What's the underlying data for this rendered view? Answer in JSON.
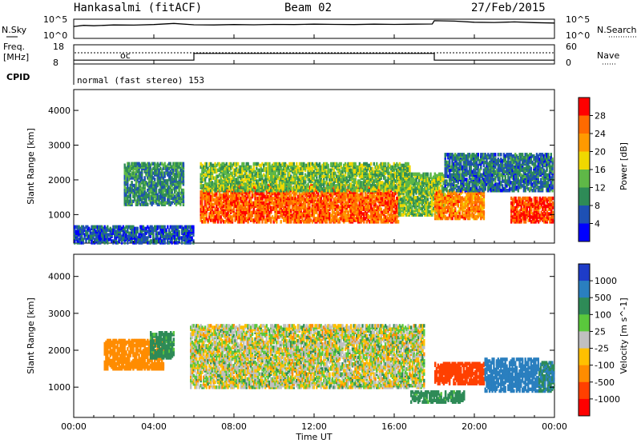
{
  "header": {
    "station": "Hankasalmi (fitACF)",
    "beam": "Beam 02",
    "date": "27/Feb/2015"
  },
  "noise_panel": {
    "left_label": "N.Sky",
    "right_label": "N.Search",
    "left_ticks": [
      "10^5",
      "10^0"
    ],
    "right_ticks": [
      "10^5",
      "10^0"
    ],
    "trace": [
      [
        0,
        0.62
      ],
      [
        0.5,
        0.68
      ],
      [
        1,
        0.66
      ],
      [
        2,
        0.7
      ],
      [
        3,
        0.69
      ],
      [
        4,
        0.72
      ],
      [
        5,
        0.78
      ],
      [
        6,
        0.71
      ],
      [
        7,
        0.7
      ],
      [
        8,
        0.72
      ],
      [
        9,
        0.71
      ],
      [
        10,
        0.73
      ],
      [
        11,
        0.72
      ],
      [
        12,
        0.74
      ],
      [
        13,
        0.73
      ],
      [
        14,
        0.72
      ],
      [
        15,
        0.74
      ],
      [
        16,
        0.73
      ],
      [
        17,
        0.74
      ],
      [
        17.9,
        0.75
      ],
      [
        18,
        0.92
      ],
      [
        19,
        0.9
      ],
      [
        20,
        0.84
      ],
      [
        21,
        0.83
      ],
      [
        22,
        0.86
      ],
      [
        23,
        0.82
      ],
      [
        24,
        0.8
      ]
    ]
  },
  "freq_panel": {
    "left_label_top": "Freq.",
    "left_label_bottom": "[MHz]",
    "left_ticks": [
      "18",
      "8"
    ],
    "right_ticks": [
      "60",
      "0"
    ],
    "right_label": "Nave",
    "cpid_label": "CPID",
    "cpid_text": "normal (fast stereo) 153",
    "freq_low": 8,
    "freq_high": 18,
    "freq_step": [
      [
        0,
        0.2
      ],
      [
        6,
        0.2
      ],
      [
        6,
        0.55
      ],
      [
        18,
        0.55
      ],
      [
        18,
        0.2
      ],
      [
        24,
        0.2
      ]
    ]
  },
  "x_axis": {
    "title": "Time UT",
    "ticks": [
      "00:00",
      "04:00",
      "08:00",
      "12:00",
      "16:00",
      "20:00",
      "00:00"
    ],
    "tick_hours": [
      0,
      4,
      8,
      12,
      16,
      20,
      24
    ],
    "range": [
      0,
      24
    ]
  },
  "power_panel": {
    "ylabel": "Slant Range [km]",
    "yticks": [
      "4000",
      "3000",
      "2000",
      "1000"
    ],
    "ytick_values": [
      4000,
      3000,
      2000,
      1000
    ],
    "yrange": [
      180,
      4600
    ],
    "colorbar_label": "Power [dB]",
    "colorbar_ticks": [
      "28",
      "24",
      "20",
      "16",
      "12",
      "8",
      "4"
    ],
    "colors": [
      "#0000ff",
      "#1e50b4",
      "#2e8b57",
      "#5fb847",
      "#f0d800",
      "#ff9a00",
      "#ff6a00",
      "#ff0000"
    ]
  },
  "velocity_panel": {
    "ylabel": "Slant Range [km]",
    "yticks": [
      "4000",
      "3000",
      "2000",
      "1000"
    ],
    "ytick_values": [
      4000,
      3000,
      2000,
      1000
    ],
    "yrange": [
      180,
      4600
    ],
    "colorbar_label": "Velocity [m s^-1]",
    "colorbar_ticks": [
      "1000",
      "500",
      "100",
      "25",
      "-25",
      "-100",
      "-500",
      "-1000"
    ],
    "colors": [
      "#1e3cc8",
      "#2a7fbf",
      "#2e8b57",
      "#5ac83c",
      "#c0c0c0",
      "#ffc000",
      "#ff8c00",
      "#ff4000",
      "#ff0000"
    ]
  },
  "chart_data": {
    "type": "heatmap",
    "title": "Hankasalmi (fitACF)",
    "xlabel": "Time UT",
    "ylabel": "Slant Range [km]",
    "x_range": [
      0,
      24
    ],
    "y_range": [
      180,
      4600
    ],
    "power_regions": [
      {
        "t0": 6.3,
        "t1": 16.2,
        "r0": 800,
        "r1": 1900,
        "dB": 26
      },
      {
        "t0": 6.3,
        "t1": 16.8,
        "r0": 1700,
        "r1": 2500,
        "dB": 14
      },
      {
        "t0": 2.5,
        "t1": 5.5,
        "r0": 1300,
        "r1": 2500,
        "dB": 10
      },
      {
        "t0": 16.2,
        "t1": 18.5,
        "r0": 1000,
        "r1": 2200,
        "dB": 14
      },
      {
        "t0": 18.0,
        "t1": 20.5,
        "r0": 900,
        "r1": 1700,
        "dB": 24
      },
      {
        "t0": 21.8,
        "t1": 24.0,
        "r0": 800,
        "r1": 1500,
        "dB": 28
      },
      {
        "t0": 18.5,
        "t1": 24.0,
        "r0": 1700,
        "r1": 2800,
        "dB": 8
      },
      {
        "t0": 0.0,
        "t1": 6.0,
        "r0": 200,
        "r1": 700,
        "dB": 6
      }
    ],
    "velocity_regions": [
      {
        "t0": 5.8,
        "t1": 17.5,
        "r0": 1000,
        "r1": 2700,
        "v": 0
      },
      {
        "t0": 18.0,
        "t1": 20.5,
        "r0": 1100,
        "r1": 1700,
        "v": -400
      },
      {
        "t0": 16.8,
        "t1": 19.5,
        "r0": 600,
        "r1": 900,
        "v": 120
      },
      {
        "t0": 20.5,
        "t1": 23.2,
        "r0": 900,
        "r1": 1800,
        "v": 600
      },
      {
        "t0": 1.5,
        "t1": 4.5,
        "r0": 1500,
        "r1": 2300,
        "v": -200
      },
      {
        "t0": 3.8,
        "t1": 5.0,
        "r0": 1800,
        "r1": 2500,
        "v": 120
      },
      {
        "t0": 23.2,
        "t1": 24.0,
        "r0": 900,
        "r1": 1700,
        "v": 300
      }
    ]
  }
}
